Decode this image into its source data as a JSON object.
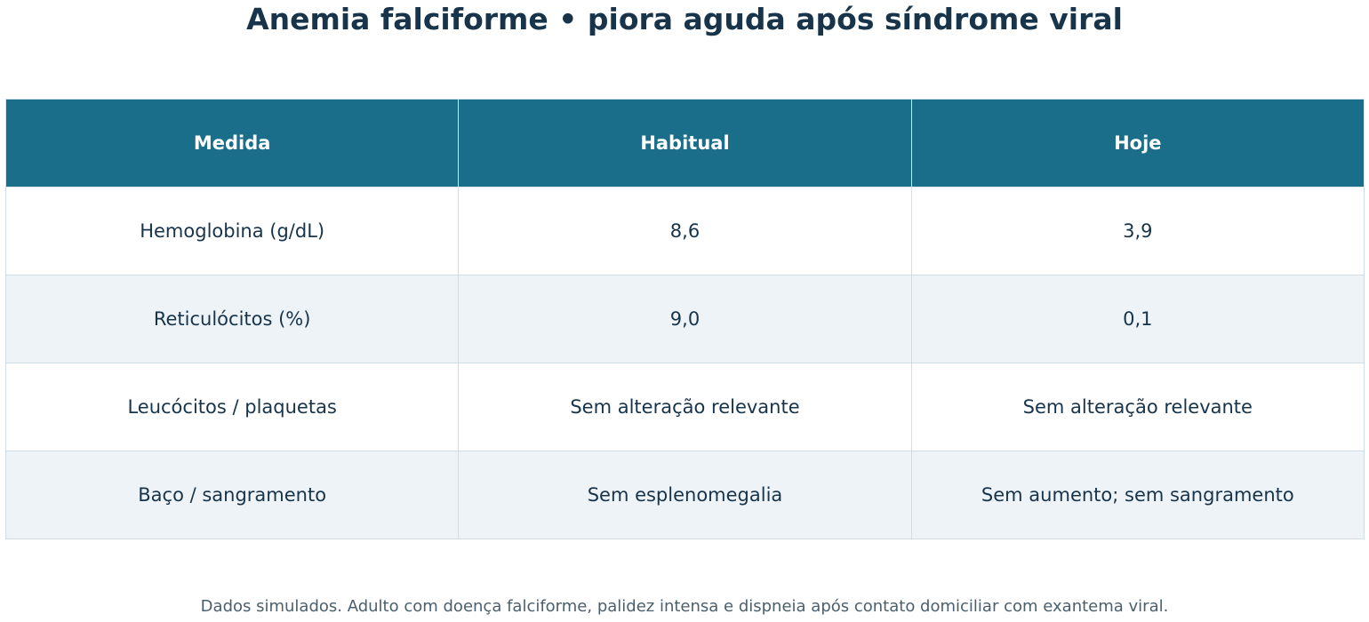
{
  "header": {
    "title": "Anemia falciforme • piora aguda após síndrome viral"
  },
  "table": {
    "columns": [
      "Medida",
      "Habitual",
      "Hoje"
    ],
    "rows": [
      [
        "Hemoglobina (g/dL)",
        "8,6",
        "3,9"
      ],
      [
        "Reticulócitos (%)",
        "9,0",
        "0,1"
      ],
      [
        "Leucócitos / plaquetas",
        "Sem alteração relevante",
        "Sem alteração relevante"
      ],
      [
        "Baço / sangramento",
        "Sem esplenomegalia",
        "Sem aumento; sem sangramento"
      ]
    ]
  },
  "footer": {
    "note": "Dados simulados. Adulto com doença falciforme, palidez intensa e dispneia após contato domiciliar com exantema viral."
  }
}
